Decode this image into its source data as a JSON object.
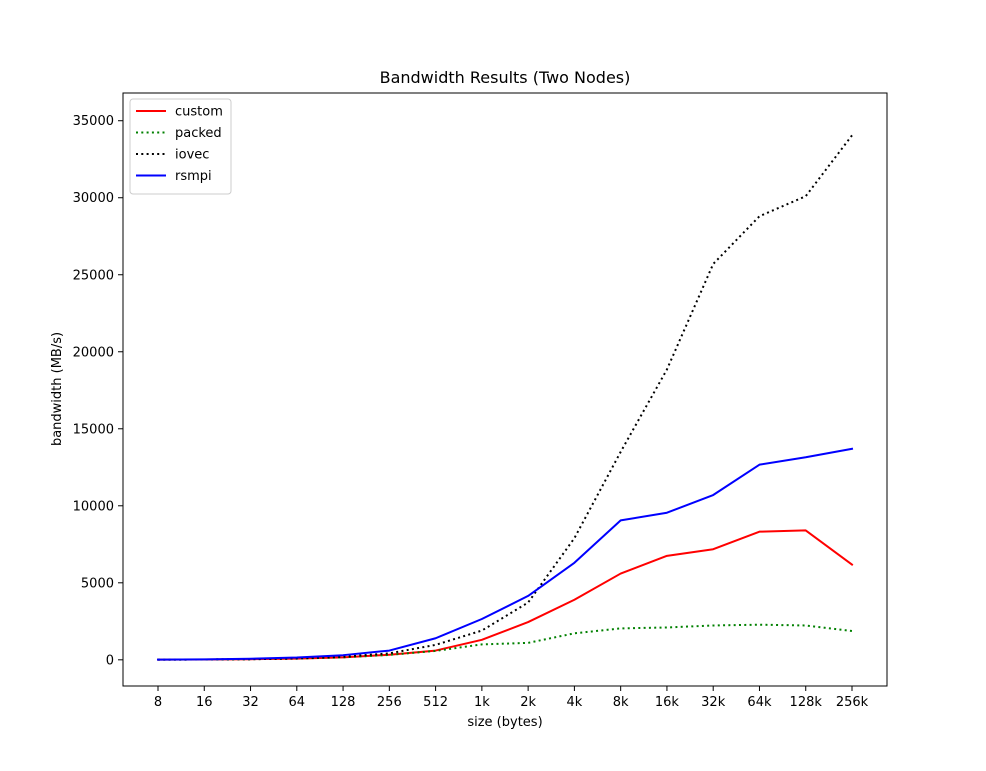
{
  "chart_data": {
    "type": "line",
    "title": "Bandwidth Results (Two Nodes)",
    "xlabel": "size (bytes)",
    "ylabel": "bandwidth (MB/s)",
    "categories": [
      "8",
      "16",
      "32",
      "64",
      "128",
      "256",
      "512",
      "1k",
      "2k",
      "4k",
      "8k",
      "16k",
      "32k",
      "64k",
      "128k",
      "256k"
    ],
    "ylim": [
      -1700,
      36800
    ],
    "yticks": [
      0,
      5000,
      10000,
      15000,
      20000,
      25000,
      30000,
      35000
    ],
    "ytick_labels": [
      "0",
      "5000",
      "10000",
      "15000",
      "20000",
      "25000",
      "30000",
      "35000"
    ],
    "grid": false,
    "legend_position": "top-left",
    "series": [
      {
        "name": "custom",
        "color": "#ff0000",
        "style": "solid",
        "values": [
          10,
          20,
          40,
          80,
          160,
          330,
          600,
          1300,
          2450,
          3900,
          5600,
          6750,
          7180,
          8320,
          8400,
          6180
        ]
      },
      {
        "name": "packed",
        "color": "#008000",
        "style": "dotted",
        "values": [
          10,
          20,
          40,
          80,
          160,
          320,
          580,
          1000,
          1100,
          1720,
          2040,
          2100,
          2230,
          2280,
          2230,
          1870
        ]
      },
      {
        "name": "iovec",
        "color": "#000000",
        "style": "dotted",
        "values": [
          10,
          20,
          40,
          90,
          200,
          420,
          970,
          1900,
          3720,
          7900,
          13500,
          18850,
          25700,
          28800,
          30100,
          34050
        ]
      },
      {
        "name": "rsmpi",
        "color": "#0000ff",
        "style": "solid",
        "values": [
          10,
          30,
          70,
          150,
          300,
          600,
          1400,
          2650,
          4150,
          6300,
          9050,
          9550,
          10700,
          12670,
          13150,
          13700
        ]
      }
    ]
  }
}
